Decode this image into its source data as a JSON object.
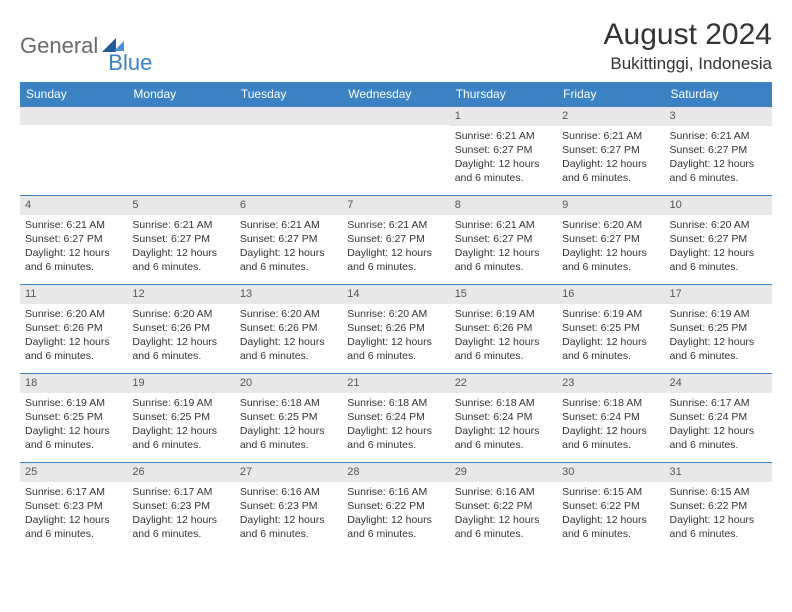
{
  "logo": {
    "text_gray": "General",
    "text_blue": "Blue"
  },
  "title": "August 2024",
  "location": "Bukittinggi, Indonesia",
  "colors": {
    "header_bg": "#3b82c4",
    "header_text": "#ffffff",
    "row_border": "#3b82c4",
    "daynum_bg": "#e8e8e8",
    "body_text": "#333333"
  },
  "weekdays": [
    "Sunday",
    "Monday",
    "Tuesday",
    "Wednesday",
    "Thursday",
    "Friday",
    "Saturday"
  ],
  "weeks": [
    [
      {
        "n": "",
        "sr": "",
        "ss": "",
        "dl": ""
      },
      {
        "n": "",
        "sr": "",
        "ss": "",
        "dl": ""
      },
      {
        "n": "",
        "sr": "",
        "ss": "",
        "dl": ""
      },
      {
        "n": "",
        "sr": "",
        "ss": "",
        "dl": ""
      },
      {
        "n": "1",
        "sr": "Sunrise: 6:21 AM",
        "ss": "Sunset: 6:27 PM",
        "dl": "Daylight: 12 hours and 6 minutes."
      },
      {
        "n": "2",
        "sr": "Sunrise: 6:21 AM",
        "ss": "Sunset: 6:27 PM",
        "dl": "Daylight: 12 hours and 6 minutes."
      },
      {
        "n": "3",
        "sr": "Sunrise: 6:21 AM",
        "ss": "Sunset: 6:27 PM",
        "dl": "Daylight: 12 hours and 6 minutes."
      }
    ],
    [
      {
        "n": "4",
        "sr": "Sunrise: 6:21 AM",
        "ss": "Sunset: 6:27 PM",
        "dl": "Daylight: 12 hours and 6 minutes."
      },
      {
        "n": "5",
        "sr": "Sunrise: 6:21 AM",
        "ss": "Sunset: 6:27 PM",
        "dl": "Daylight: 12 hours and 6 minutes."
      },
      {
        "n": "6",
        "sr": "Sunrise: 6:21 AM",
        "ss": "Sunset: 6:27 PM",
        "dl": "Daylight: 12 hours and 6 minutes."
      },
      {
        "n": "7",
        "sr": "Sunrise: 6:21 AM",
        "ss": "Sunset: 6:27 PM",
        "dl": "Daylight: 12 hours and 6 minutes."
      },
      {
        "n": "8",
        "sr": "Sunrise: 6:21 AM",
        "ss": "Sunset: 6:27 PM",
        "dl": "Daylight: 12 hours and 6 minutes."
      },
      {
        "n": "9",
        "sr": "Sunrise: 6:20 AM",
        "ss": "Sunset: 6:27 PM",
        "dl": "Daylight: 12 hours and 6 minutes."
      },
      {
        "n": "10",
        "sr": "Sunrise: 6:20 AM",
        "ss": "Sunset: 6:27 PM",
        "dl": "Daylight: 12 hours and 6 minutes."
      }
    ],
    [
      {
        "n": "11",
        "sr": "Sunrise: 6:20 AM",
        "ss": "Sunset: 6:26 PM",
        "dl": "Daylight: 12 hours and 6 minutes."
      },
      {
        "n": "12",
        "sr": "Sunrise: 6:20 AM",
        "ss": "Sunset: 6:26 PM",
        "dl": "Daylight: 12 hours and 6 minutes."
      },
      {
        "n": "13",
        "sr": "Sunrise: 6:20 AM",
        "ss": "Sunset: 6:26 PM",
        "dl": "Daylight: 12 hours and 6 minutes."
      },
      {
        "n": "14",
        "sr": "Sunrise: 6:20 AM",
        "ss": "Sunset: 6:26 PM",
        "dl": "Daylight: 12 hours and 6 minutes."
      },
      {
        "n": "15",
        "sr": "Sunrise: 6:19 AM",
        "ss": "Sunset: 6:26 PM",
        "dl": "Daylight: 12 hours and 6 minutes."
      },
      {
        "n": "16",
        "sr": "Sunrise: 6:19 AM",
        "ss": "Sunset: 6:25 PM",
        "dl": "Daylight: 12 hours and 6 minutes."
      },
      {
        "n": "17",
        "sr": "Sunrise: 6:19 AM",
        "ss": "Sunset: 6:25 PM",
        "dl": "Daylight: 12 hours and 6 minutes."
      }
    ],
    [
      {
        "n": "18",
        "sr": "Sunrise: 6:19 AM",
        "ss": "Sunset: 6:25 PM",
        "dl": "Daylight: 12 hours and 6 minutes."
      },
      {
        "n": "19",
        "sr": "Sunrise: 6:19 AM",
        "ss": "Sunset: 6:25 PM",
        "dl": "Daylight: 12 hours and 6 minutes."
      },
      {
        "n": "20",
        "sr": "Sunrise: 6:18 AM",
        "ss": "Sunset: 6:25 PM",
        "dl": "Daylight: 12 hours and 6 minutes."
      },
      {
        "n": "21",
        "sr": "Sunrise: 6:18 AM",
        "ss": "Sunset: 6:24 PM",
        "dl": "Daylight: 12 hours and 6 minutes."
      },
      {
        "n": "22",
        "sr": "Sunrise: 6:18 AM",
        "ss": "Sunset: 6:24 PM",
        "dl": "Daylight: 12 hours and 6 minutes."
      },
      {
        "n": "23",
        "sr": "Sunrise: 6:18 AM",
        "ss": "Sunset: 6:24 PM",
        "dl": "Daylight: 12 hours and 6 minutes."
      },
      {
        "n": "24",
        "sr": "Sunrise: 6:17 AM",
        "ss": "Sunset: 6:24 PM",
        "dl": "Daylight: 12 hours and 6 minutes."
      }
    ],
    [
      {
        "n": "25",
        "sr": "Sunrise: 6:17 AM",
        "ss": "Sunset: 6:23 PM",
        "dl": "Daylight: 12 hours and 6 minutes."
      },
      {
        "n": "26",
        "sr": "Sunrise: 6:17 AM",
        "ss": "Sunset: 6:23 PM",
        "dl": "Daylight: 12 hours and 6 minutes."
      },
      {
        "n": "27",
        "sr": "Sunrise: 6:16 AM",
        "ss": "Sunset: 6:23 PM",
        "dl": "Daylight: 12 hours and 6 minutes."
      },
      {
        "n": "28",
        "sr": "Sunrise: 6:16 AM",
        "ss": "Sunset: 6:22 PM",
        "dl": "Daylight: 12 hours and 6 minutes."
      },
      {
        "n": "29",
        "sr": "Sunrise: 6:16 AM",
        "ss": "Sunset: 6:22 PM",
        "dl": "Daylight: 12 hours and 6 minutes."
      },
      {
        "n": "30",
        "sr": "Sunrise: 6:15 AM",
        "ss": "Sunset: 6:22 PM",
        "dl": "Daylight: 12 hours and 6 minutes."
      },
      {
        "n": "31",
        "sr": "Sunrise: 6:15 AM",
        "ss": "Sunset: 6:22 PM",
        "dl": "Daylight: 12 hours and 6 minutes."
      }
    ]
  ]
}
